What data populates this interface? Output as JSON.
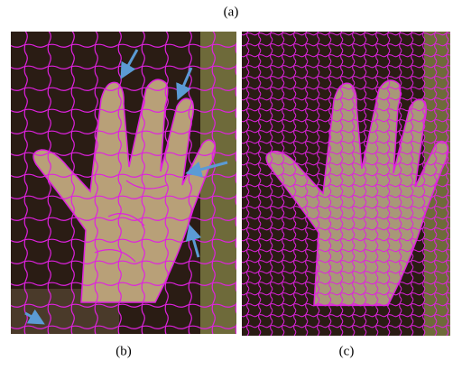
{
  "figure": {
    "top_label": "(a)",
    "panels": [
      {
        "label": "(b)"
      },
      {
        "label": "(c)"
      }
    ]
  }
}
